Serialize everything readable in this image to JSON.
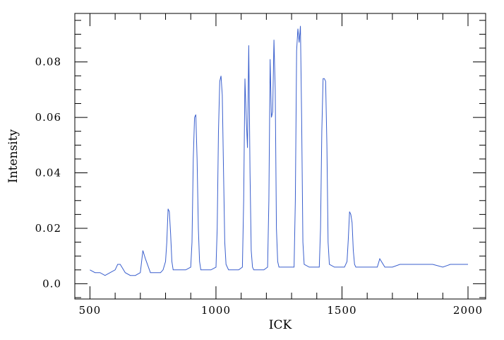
{
  "chart_data": {
    "type": "line",
    "title": "",
    "xlabel": "ICK",
    "ylabel": "Intensity",
    "xlim": [
      440,
      2070
    ],
    "ylim": [
      -0.0055,
      0.0975
    ],
    "xticks": [
      500,
      1000,
      1500,
      2000
    ],
    "xtick_labels": [
      "500",
      "1000",
      "1500",
      "2000"
    ],
    "xminor_step": 100,
    "yticks": [
      0.0,
      0.02,
      0.04,
      0.06,
      0.08
    ],
    "ytick_labels": [
      "0.0",
      "0.02",
      "0.04",
      "0.06",
      "0.08"
    ],
    "yminor_step": 0.005,
    "grid": false,
    "series": [
      {
        "color": "#3a5fcd",
        "peaks": [
          {
            "x": 710,
            "y": 0.012
          },
          {
            "x": 812,
            "y": 0.027
          },
          {
            "x": 918,
            "y": 0.061
          },
          {
            "x": 1022,
            "y": 0.075
          },
          {
            "x": 1130,
            "y": 0.086
          },
          {
            "x": 1226,
            "y": 0.088
          },
          {
            "x": 1334,
            "y": 0.093
          },
          {
            "x": 1434,
            "y": 0.074
          },
          {
            "x": 1538,
            "y": 0.026
          }
        ],
        "x": [
          500,
          520,
          540,
          560,
          580,
          600,
          610,
          620,
          640,
          660,
          680,
          700,
          710,
          720,
          740,
          760,
          780,
          790,
          800,
          805,
          810,
          815,
          820,
          825,
          830,
          840,
          860,
          880,
          900,
          905,
          910,
          915,
          920,
          925,
          930,
          935,
          940,
          960,
          980,
          1000,
          1005,
          1010,
          1015,
          1020,
          1025,
          1030,
          1035,
          1040,
          1050,
          1070,
          1090,
          1105,
          1110,
          1115,
          1120,
          1125,
          1130,
          1135,
          1140,
          1145,
          1150,
          1170,
          1190,
          1205,
          1210,
          1215,
          1220,
          1225,
          1230,
          1235,
          1240,
          1245,
          1250,
          1270,
          1290,
          1310,
          1315,
          1320,
          1325,
          1330,
          1335,
          1340,
          1345,
          1350,
          1370,
          1390,
          1410,
          1415,
          1420,
          1425,
          1430,
          1435,
          1440,
          1445,
          1450,
          1470,
          1490,
          1510,
          1520,
          1525,
          1530,
          1535,
          1540,
          1545,
          1550,
          1555,
          1570,
          1600,
          1620,
          1640,
          1650,
          1670,
          1700,
          1730,
          1760,
          1800,
          1830,
          1860,
          1900,
          1930,
          1960,
          2000
        ],
        "y": [
          0.005,
          0.004,
          0.004,
          0.003,
          0.004,
          0.005,
          0.007,
          0.007,
          0.004,
          0.003,
          0.003,
          0.004,
          0.012,
          0.009,
          0.004,
          0.004,
          0.004,
          0.005,
          0.008,
          0.015,
          0.027,
          0.026,
          0.018,
          0.008,
          0.005,
          0.005,
          0.005,
          0.005,
          0.006,
          0.015,
          0.045,
          0.06,
          0.061,
          0.045,
          0.02,
          0.008,
          0.005,
          0.005,
          0.005,
          0.006,
          0.02,
          0.055,
          0.073,
          0.075,
          0.068,
          0.04,
          0.015,
          0.007,
          0.005,
          0.005,
          0.005,
          0.006,
          0.03,
          0.074,
          0.06,
          0.049,
          0.086,
          0.04,
          0.012,
          0.006,
          0.005,
          0.005,
          0.005,
          0.006,
          0.03,
          0.081,
          0.06,
          0.062,
          0.088,
          0.07,
          0.02,
          0.008,
          0.006,
          0.006,
          0.006,
          0.006,
          0.03,
          0.084,
          0.092,
          0.087,
          0.093,
          0.06,
          0.015,
          0.007,
          0.006,
          0.006,
          0.006,
          0.02,
          0.055,
          0.074,
          0.074,
          0.073,
          0.05,
          0.015,
          0.007,
          0.006,
          0.006,
          0.006,
          0.008,
          0.016,
          0.026,
          0.025,
          0.022,
          0.012,
          0.007,
          0.006,
          0.006,
          0.006,
          0.006,
          0.006,
          0.009,
          0.006,
          0.006,
          0.007,
          0.007,
          0.007,
          0.007,
          0.007,
          0.006,
          0.007,
          0.007,
          0.007
        ]
      }
    ]
  }
}
